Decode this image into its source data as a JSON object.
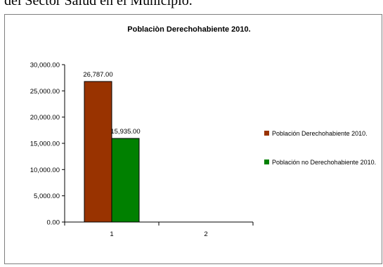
{
  "header": {
    "text": "del Sector Salud en el Municipio."
  },
  "chart_data": {
    "type": "bar",
    "title": "Poblaciòn Derechohabiente 2010.",
    "categories": [
      "1",
      "2"
    ],
    "series": [
      {
        "name": "Población Derechohabiente 2010.",
        "values": [
          26787,
          null
        ],
        "color": "#993300",
        "data_labels": [
          "26,787.00",
          ""
        ]
      },
      {
        "name": "Población no Derechohabiente 2010.",
        "values": [
          15935,
          null
        ],
        "color": "#008000",
        "data_labels": [
          "15,935.00",
          ""
        ]
      }
    ],
    "ylim": [
      0,
      30000
    ],
    "yticks": [
      0,
      5000,
      10000,
      15000,
      20000,
      25000,
      30000
    ],
    "ytick_labels": [
      "0.00",
      "5,000.00",
      "10,000.00",
      "15,000.00",
      "20,000.00",
      "25,000.00",
      "30,000.00"
    ],
    "grid": false,
    "legend": "right"
  }
}
